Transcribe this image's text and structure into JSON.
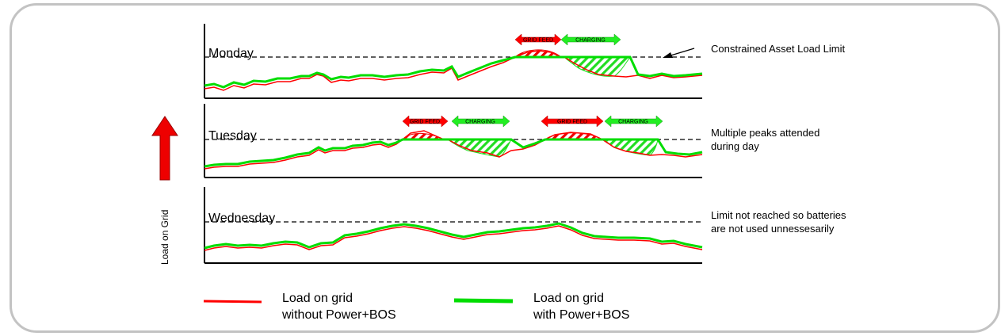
{
  "axis_label": "Load on Grid",
  "days": [
    {
      "name": "Monday",
      "note_lines": [
        "Constrained Asset Load Limit"
      ],
      "arrows": [
        {
          "type": "grid-feed",
          "label": "GRID FEED"
        },
        {
          "type": "charging",
          "label": "CHARGING"
        }
      ]
    },
    {
      "name": "Tuesday",
      "note_lines": [
        "Multiple peaks attended",
        "during day"
      ],
      "arrows": [
        {
          "type": "grid-feed",
          "label": "GRID FEED"
        },
        {
          "type": "charging",
          "label": "CHARGING"
        },
        {
          "type": "grid-feed",
          "label": "GRID FEED"
        },
        {
          "type": "charging",
          "label": "CHARGING"
        }
      ]
    },
    {
      "name": "Wednesday",
      "note_lines": [
        "Limit not reached so batteries",
        "are not used unnessesarily"
      ],
      "arrows": []
    }
  ],
  "legend": [
    {
      "line1": "Load on grid",
      "line2": "without Power+BOS",
      "color": "#ff0000"
    },
    {
      "line1": "Load on grid",
      "line2": "with Power+BOS",
      "color": "#00dd00"
    }
  ],
  "colors": {
    "without_power_bos": "#ff0000",
    "with_power_bos": "#00dd00",
    "grid_feed_arrow": "#ff0000",
    "charging_arrow": "#22ee22",
    "up_arrow": "#ee0000"
  }
}
